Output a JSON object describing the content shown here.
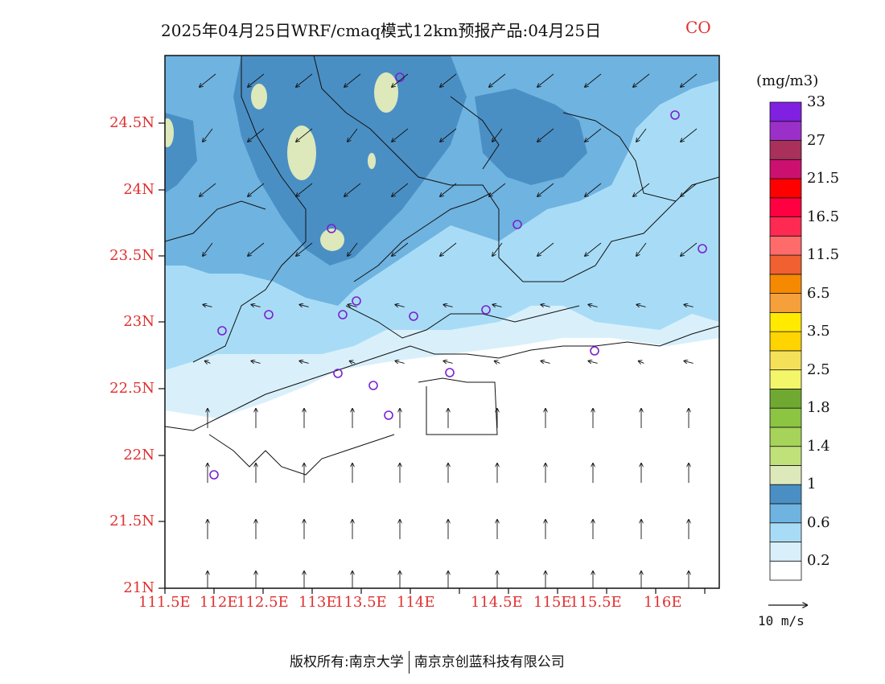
{
  "title": "2025年04月25日WRF/cmaq模式12km预报产品:04月25日",
  "species": "CO",
  "unit": "(mg/m3)",
  "lat_labels": [
    "24.5N",
    "24N",
    "23.5N",
    "23N",
    "22.5N",
    "22N",
    "21.5N",
    "21N"
  ],
  "lon_labels": [
    "111.5E",
    "112E",
    "112.5E",
    "113E",
    "113.5E",
    "114E",
    "114.5E",
    "115E",
    "115.5E",
    "116E"
  ],
  "colorbar": {
    "colors": [
      "#ffffff",
      "#d9f0fb",
      "#a8dcf6",
      "#6fb3e0",
      "#4a8fc4",
      "#dde8bb",
      "#c0e07a",
      "#a6d35a",
      "#8cc542",
      "#6fa932",
      "#f4f66a",
      "#f5e05a",
      "#ffd400",
      "#ffea00",
      "#f5a03a",
      "#f58a00",
      "#f06030",
      "#ff6b6b",
      "#ff2a52",
      "#ff0040",
      "#ff0000",
      "#cc1070",
      "#a8305a",
      "#9a30c8",
      "#8020e0"
    ],
    "labels": [
      "0.2",
      "0.6",
      "1",
      "1.4",
      "1.8",
      "2.5",
      "3.5",
      "6.5",
      "11.5",
      "16.5",
      "21.5",
      "27",
      "33"
    ]
  },
  "wind_ref": {
    "label": "10 m/s"
  },
  "footer": {
    "left": "版权所有:南京大学",
    "right": "南京京创蓝科技有限公司"
  }
}
